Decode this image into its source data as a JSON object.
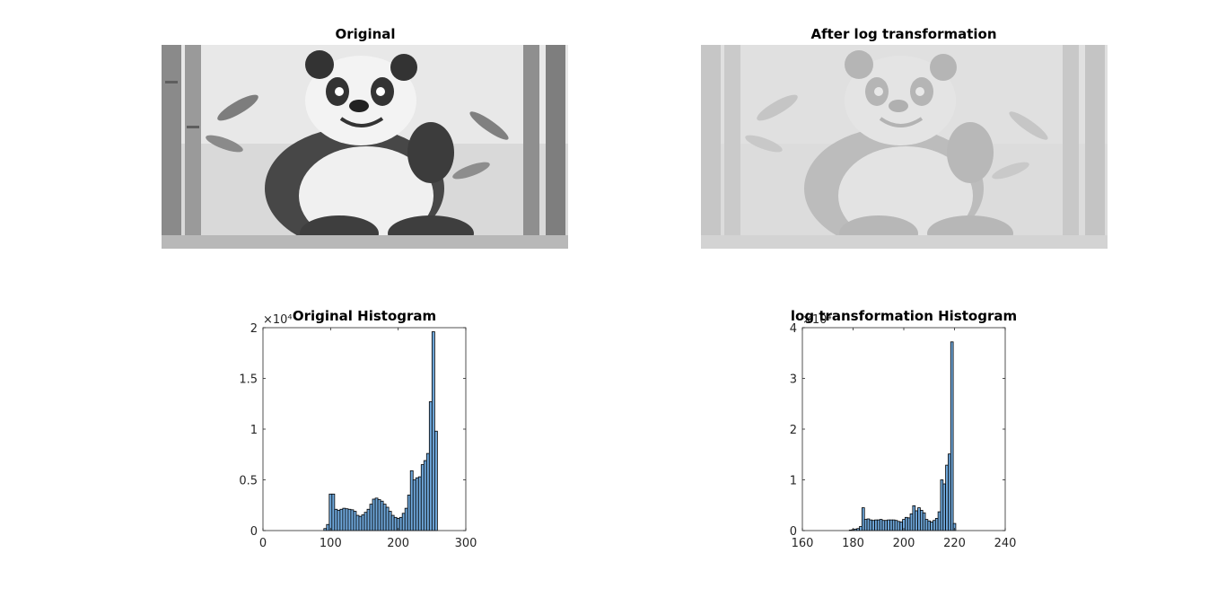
{
  "panels": {
    "original_title": "Original",
    "log_title": "After log transformation"
  },
  "colors": {
    "bar_fill": "#6fa8dc",
    "bar_edge": "#000000",
    "axis": "#262626"
  },
  "chart_data": [
    {
      "type": "bar",
      "title": "Original Histogram",
      "xlabel": "",
      "ylabel": "",
      "xlim": [
        0,
        300
      ],
      "ylim": [
        0,
        20000
      ],
      "xticks": [
        0,
        100,
        200,
        300
      ],
      "yticks": [
        0,
        5000,
        10000,
        15000,
        20000
      ],
      "ytick_labels": [
        "0",
        "0.5",
        "1",
        "1.5",
        "2"
      ],
      "y_exponent": "×10⁴",
      "bin_width": 4,
      "x": [
        92,
        96,
        100,
        104,
        108,
        112,
        116,
        120,
        124,
        128,
        132,
        136,
        140,
        144,
        148,
        152,
        156,
        160,
        164,
        168,
        172,
        176,
        180,
        184,
        188,
        192,
        196,
        200,
        204,
        208,
        212,
        216,
        220,
        224,
        228,
        232,
        236,
        240,
        244,
        248,
        252
      ],
      "values": [
        200,
        600,
        3600,
        3600,
        2100,
        2000,
        2100,
        2200,
        2150,
        2100,
        2050,
        1900,
        1500,
        1400,
        1550,
        1800,
        2100,
        2600,
        3100,
        3200,
        3050,
        2900,
        2600,
        2300,
        1900,
        1500,
        1300,
        1200,
        1300,
        1700,
        2200,
        3500,
        5900,
        5000,
        5200,
        5300,
        6500,
        6900,
        7600,
        12700,
        19600
      ],
      "extra_bars": [
        {
          "x": 256,
          "value": 9800
        }
      ]
    },
    {
      "type": "bar",
      "title": "log transformation Histogram",
      "xlabel": "",
      "ylabel": "",
      "xlim": [
        160,
        240
      ],
      "ylim": [
        0,
        40000
      ],
      "xticks": [
        160,
        180,
        200,
        220,
        240
      ],
      "yticks": [
        0,
        10000,
        20000,
        30000,
        40000
      ],
      "ytick_labels": [
        "0",
        "1",
        "2",
        "3",
        "4"
      ],
      "y_exponent": "×10⁴",
      "bin_width": 1,
      "x": [
        178,
        179,
        180,
        181,
        182,
        183,
        184,
        185,
        186,
        187,
        188,
        189,
        190,
        191,
        192,
        193,
        194,
        195,
        196,
        197,
        198,
        199,
        200,
        201,
        202,
        203,
        204,
        205,
        206,
        207,
        208,
        209,
        210,
        211,
        212,
        213,
        214,
        215,
        216,
        217,
        218,
        219,
        220,
        221,
        222
      ],
      "values": [
        0,
        100,
        200,
        300,
        400,
        800,
        4500,
        2200,
        2300,
        2100,
        2000,
        2100,
        2100,
        2200,
        2000,
        2000,
        2100,
        2100,
        2100,
        2000,
        1800,
        1700,
        2200,
        2600,
        2500,
        3300,
        4900,
        3900,
        4500,
        4000,
        3500,
        2200,
        1900,
        1700,
        2000,
        2400,
        3700,
        10000,
        9200,
        12900,
        15100,
        37200,
        1400,
        0,
        0
      ]
    }
  ]
}
